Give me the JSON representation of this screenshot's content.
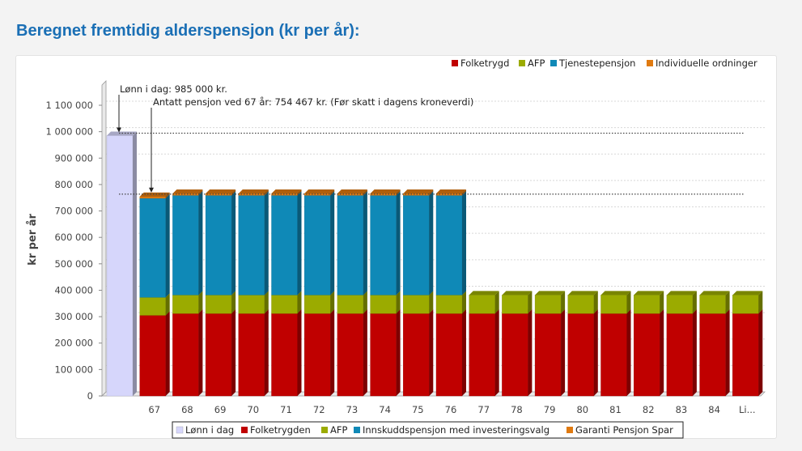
{
  "header": {
    "title": "Beregnet fremtidig alderspensjon (kr per år):"
  },
  "colors": {
    "lonn": "#d6d6fb",
    "folketrygd": "#c00000",
    "afp": "#9bab00",
    "tjeneste": "#0f89b7",
    "individuelle": "#e07a10"
  },
  "chart_data": {
    "type": "bar",
    "stacked": true,
    "ylabel": "kr per år",
    "ylim": [
      0,
      1100000
    ],
    "yticks": [
      "0",
      "100 000",
      "200 000",
      "300 000",
      "400 000",
      "500 000",
      "600 000",
      "700 000",
      "800 000",
      "900 000",
      "1 000 000",
      "1 100 000"
    ],
    "categories": [
      "",
      "67",
      "68",
      "69",
      "70",
      "71",
      "72",
      "73",
      "74",
      "75",
      "76",
      "77",
      "78",
      "79",
      "80",
      "81",
      "82",
      "83",
      "84",
      "Li..."
    ],
    "series": [
      {
        "name": "Lønn i dag",
        "color_key": "lonn",
        "values": [
          985000,
          0,
          0,
          0,
          0,
          0,
          0,
          0,
          0,
          0,
          0,
          0,
          0,
          0,
          0,
          0,
          0,
          0,
          0,
          0
        ]
      },
      {
        "name": "Folketrygden",
        "color_key": "folketrygd",
        "values": [
          0,
          305000,
          312000,
          312000,
          312000,
          312000,
          312000,
          312000,
          312000,
          312000,
          312000,
          312000,
          312000,
          312000,
          312000,
          312000,
          312000,
          312000,
          312000,
          312000
        ]
      },
      {
        "name": "AFP",
        "color_key": "afp",
        "values": [
          0,
          68000,
          70000,
          70000,
          70000,
          70000,
          70000,
          70000,
          70000,
          70000,
          70000,
          70000,
          70000,
          70000,
          70000,
          70000,
          70000,
          70000,
          70000,
          70000
        ]
      },
      {
        "name": "Innskuddspensjon med investeringsvalg",
        "color_key": "tjeneste",
        "values": [
          0,
          375000,
          377000,
          377000,
          377000,
          377000,
          377000,
          377000,
          377000,
          377000,
          377000,
          0,
          0,
          0,
          0,
          0,
          0,
          0,
          0,
          0
        ]
      },
      {
        "name": "Garanti Pensjon Spar",
        "color_key": "individuelle",
        "values": [
          0,
          6467,
          7000,
          7000,
          7000,
          7000,
          7000,
          7000,
          7000,
          7000,
          7000,
          0,
          0,
          0,
          0,
          0,
          0,
          0,
          0,
          0
        ]
      }
    ],
    "top_legend": [
      "Folketrygd",
      "AFP",
      "Tjenestepensjon",
      "Individuelle ordninger"
    ],
    "reference_lines": [
      {
        "value": 985000,
        "label": "Lønn i dag: 985 000 kr."
      },
      {
        "value": 754467,
        "label": "Antatt pensjon ved 67 år: 754 467 kr. (Før skatt i dagens kroneverdi)"
      }
    ],
    "grid": true,
    "legend_position": "top-right and bottom"
  }
}
